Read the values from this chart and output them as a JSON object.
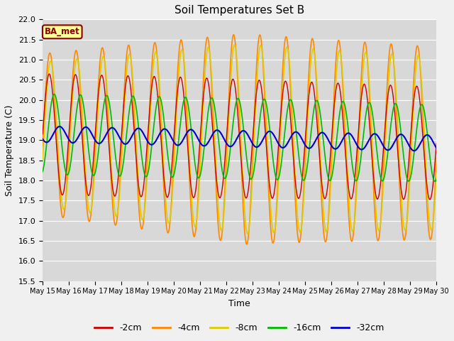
{
  "title": "Soil Temperatures Set B",
  "xlabel": "Time",
  "ylabel": "Soil Temperature (C)",
  "ylim": [
    15.5,
    22.0
  ],
  "yticks": [
    15.5,
    16.0,
    16.5,
    17.0,
    17.5,
    18.0,
    18.5,
    19.0,
    19.5,
    20.0,
    20.5,
    21.0,
    21.5,
    22.0
  ],
  "fig_bg_color": "#f0f0f0",
  "plot_bg_color": "#d8d8d8",
  "label_box_text": "BA_met",
  "label_box_facecolor": "#ffff99",
  "label_box_edgecolor": "#8b0000",
  "label_text_color": "#8b0000",
  "series_colors": {
    "-2cm": "#cc0000",
    "-4cm": "#ff8800",
    "-8cm": "#ddcc00",
    "-16cm": "#00bb00",
    "-32cm": "#0000cc"
  },
  "series_lw": {
    "-2cm": 1.0,
    "-4cm": 1.2,
    "-8cm": 1.2,
    "-16cm": 1.2,
    "-32cm": 1.5
  },
  "start_day": 15,
  "end_day": 30,
  "samples_per_day": 48
}
